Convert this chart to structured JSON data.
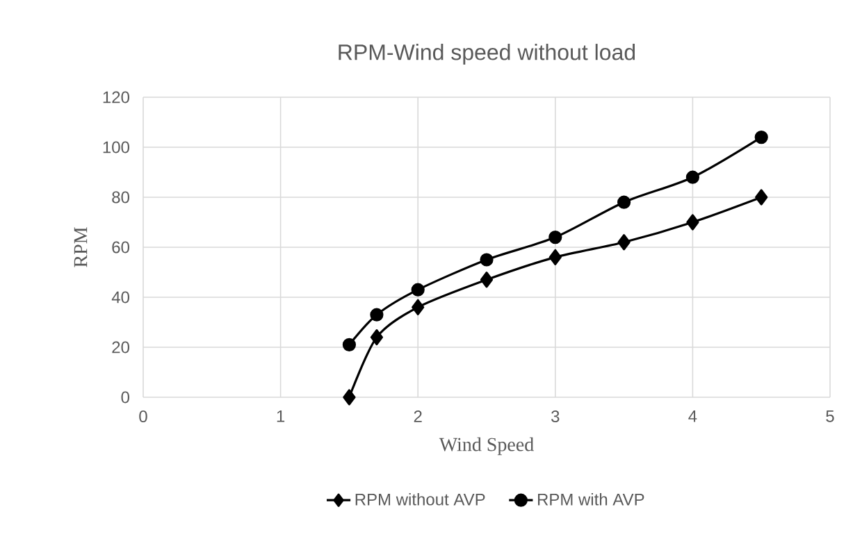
{
  "chart_data": {
    "type": "line",
    "title": "RPM-Wind speed without load",
    "xlabel": "Wind Speed",
    "ylabel": "RPM",
    "x": [
      1.5,
      1.7,
      2,
      2.5,
      3,
      3.5,
      4,
      4.5
    ],
    "series": [
      {
        "name": "RPM without AVP",
        "color": "#000000",
        "marker": "diamond",
        "values": [
          0,
          24,
          36,
          47,
          56,
          62,
          70,
          80
        ]
      },
      {
        "name": "RPM with AVP",
        "color": "#000000",
        "marker": "circle",
        "values": [
          21,
          33,
          43,
          55,
          64,
          78,
          88,
          104
        ]
      }
    ],
    "xlim": [
      0,
      5
    ],
    "xticks": [
      0,
      1,
      2,
      3,
      4,
      5
    ],
    "ylim": [
      0,
      120
    ],
    "yticks": [
      0,
      20,
      40,
      60,
      80,
      100,
      120
    ],
    "grid": true,
    "legend": "bottom",
    "line_style": "solid"
  }
}
